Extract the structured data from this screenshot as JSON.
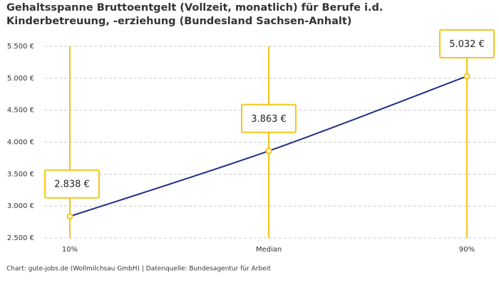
{
  "chart_data": {
    "type": "line",
    "title": "Gehaltsspanne Bruttoentgelt (Vollzeit, monatlich) für Berufe i.d. Kinderbetreuung, -erziehung (Bundesland Sachsen-Anhalt)",
    "categories": [
      "10%",
      "Median",
      "90%"
    ],
    "series": [
      {
        "name": "Bruttoentgelt",
        "color": "#1f2d8a",
        "values": [
          2838,
          3863,
          5032
        ],
        "value_labels": [
          "2.838 €",
          "3.863 €",
          "5.032 €"
        ]
      }
    ],
    "marker_color": "#f5c518",
    "ylim": [
      2500,
      5500
    ],
    "yticks": [
      {
        "value": 2500,
        "label": "2.500 €"
      },
      {
        "value": 3000,
        "label": "3.000 €"
      },
      {
        "value": 3500,
        "label": "3.500 €"
      },
      {
        "value": 4000,
        "label": "4.000 €"
      },
      {
        "value": 4500,
        "label": "4.500 €"
      },
      {
        "value": 5000,
        "label": "5.000 €"
      },
      {
        "value": 5500,
        "label": "5.500 €"
      }
    ],
    "grid": true,
    "source": "Chart: gute-jobs.de (Wollmilchsau GmbH) | Datenquelle: Bundesagentur für Arbeit"
  }
}
